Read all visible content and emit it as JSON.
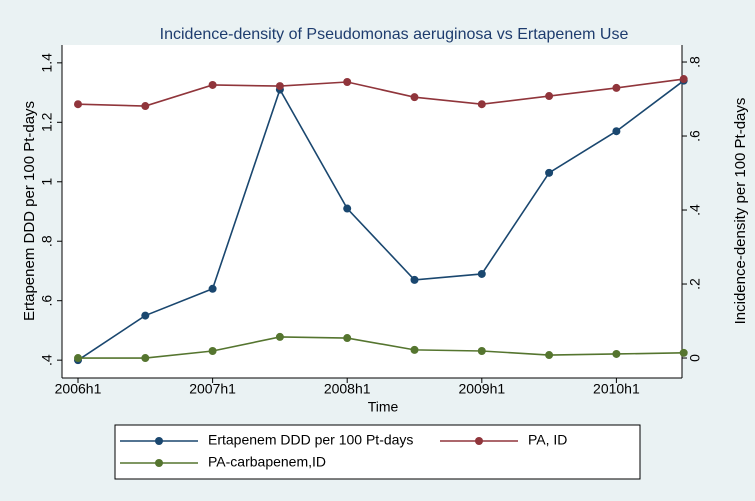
{
  "chart_data": {
    "type": "line",
    "title": "Incidence-density of Pseudomonas aeruginosa vs Ertapenem Use",
    "x_label": "Time",
    "y_label": "Ertapenem DDD per 100 Pt-days",
    "y2_label": "Incidence-density per 100 Pt-days",
    "categories": [
      "2006h1",
      null,
      "2007h1",
      null,
      "2008h1",
      null,
      "2009h1",
      null,
      "2010h1",
      null
    ],
    "ylim": [
      0.34,
      1.46
    ],
    "yticks": [
      {
        "value": 0.4,
        "label": ".4"
      },
      {
        "value": 0.6,
        "label": ".6"
      },
      {
        "value": 0.8,
        "label": ".8"
      },
      1,
      {
        "value": 1.2,
        "label": "1.2"
      },
      {
        "value": 1.4,
        "label": "1.4"
      }
    ],
    "y2lim": [
      -0.054,
      0.846
    ],
    "y2ticks": [
      0,
      {
        "value": 0.2,
        "label": ".2"
      },
      {
        "value": 0.4,
        "label": ".4"
      },
      {
        "value": 0.6,
        "label": ".6"
      },
      {
        "value": 0.8,
        "label": ".8"
      }
    ],
    "grid": false,
    "series": [
      {
        "name": "Ertapenem DDD per 100 Pt-days",
        "color": "#1a476f",
        "axis": "y",
        "values": [
          0.4,
          0.55,
          0.64,
          1.31,
          0.91,
          0.67,
          0.69,
          1.03,
          1.17,
          1.34
        ]
      },
      {
        "name": "PA, ID",
        "color": "#90353b",
        "axis": "y2",
        "values": [
          0.686,
          0.681,
          0.738,
          0.735,
          0.746,
          0.705,
          0.686,
          0.708,
          0.73,
          0.754
        ]
      },
      {
        "name": "PA-carbapenem,ID",
        "color": "#55752f",
        "axis": "y2",
        "values": [
          0.0,
          0.0,
          0.019,
          0.057,
          0.054,
          0.022,
          0.019,
          0.008,
          0.011,
          0.014
        ]
      }
    ]
  }
}
